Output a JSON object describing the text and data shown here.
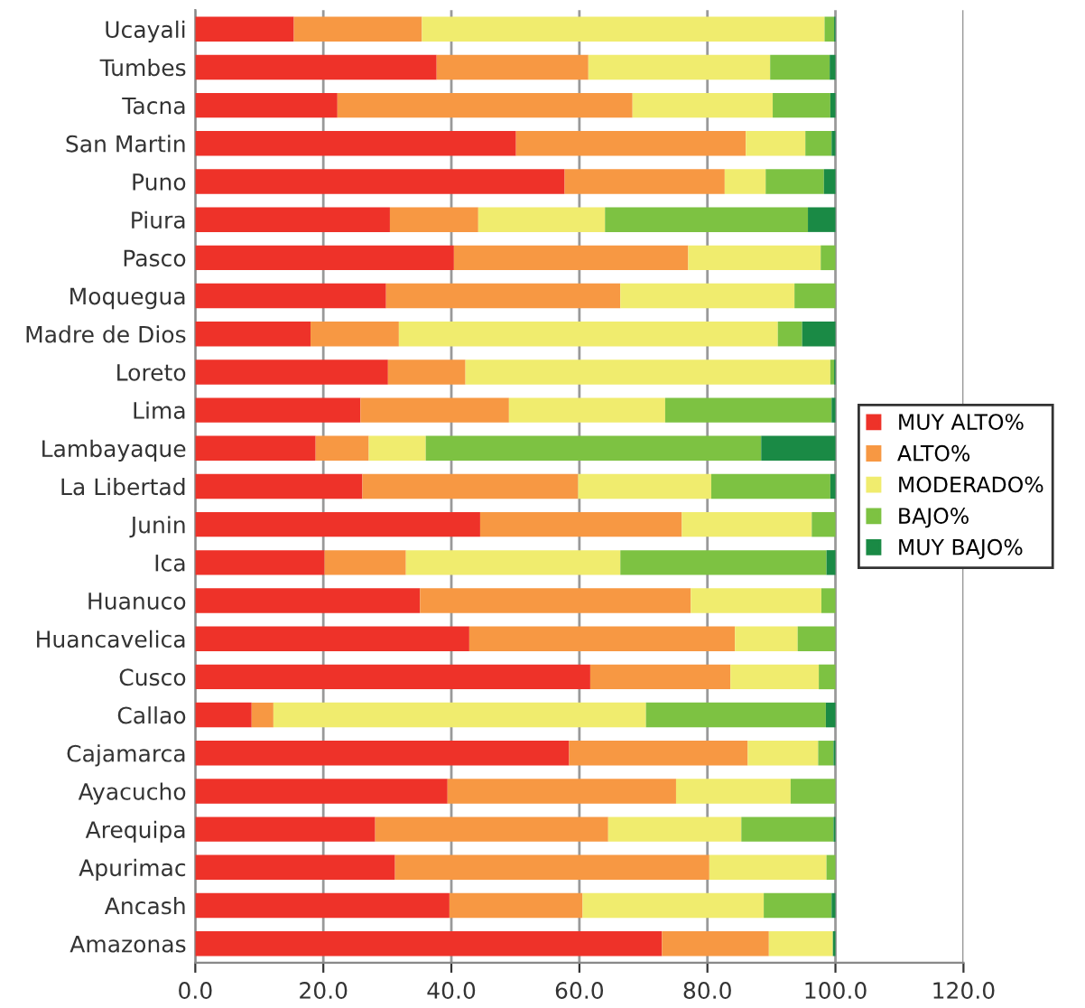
{
  "chart_data": {
    "type": "bar",
    "orientation": "horizontal",
    "stacked": true,
    "categories": [
      "Ucayali",
      "Tumbes",
      "Tacna",
      "San Martin",
      "Puno",
      "Piura",
      "Pasco",
      "Moquegua",
      "Madre de Dios",
      "Loreto",
      "Lima",
      "Lambayaque",
      "La Libertad",
      "Junin",
      "Ica",
      "Huanuco",
      "Huancavelica",
      "Cusco",
      "Callao",
      "Cajamarca",
      "Ayacucho",
      "Arequipa",
      "Apurimac",
      "Ancash",
      "Amazonas"
    ],
    "series": [
      {
        "name": "MUY ALTO%",
        "color": "#ee3229",
        "values": [
          15.4,
          37.7,
          22.2,
          50.1,
          57.7,
          30.4,
          40.4,
          29.8,
          18.0,
          30.1,
          25.8,
          18.8,
          26.1,
          44.5,
          20.2,
          35.1,
          42.8,
          61.7,
          8.8,
          58.4,
          39.4,
          28.1,
          31.2,
          39.7,
          72.9
        ]
      },
      {
        "name": "ALTO%",
        "color": "#f79843",
        "values": [
          20.0,
          23.7,
          46.1,
          35.9,
          25.0,
          13.8,
          36.6,
          36.6,
          13.8,
          12.1,
          23.2,
          8.3,
          33.7,
          31.5,
          12.7,
          42.3,
          41.5,
          21.9,
          3.4,
          27.9,
          35.7,
          36.4,
          49.1,
          20.8,
          16.7
        ]
      },
      {
        "name": "MODERADO%",
        "color": "#f0ec6e",
        "values": [
          62.9,
          28.4,
          21.9,
          9.3,
          6.4,
          19.8,
          20.7,
          27.2,
          59.2,
          57.0,
          24.4,
          8.9,
          20.8,
          20.3,
          33.5,
          20.4,
          9.8,
          13.8,
          58.2,
          11.0,
          17.9,
          20.8,
          18.3,
          28.3,
          10.0
        ]
      },
      {
        "name": "BAJO%",
        "color": "#7dc242",
        "values": [
          1.5,
          9.3,
          9.0,
          4.1,
          9.1,
          31.7,
          2.3,
          6.4,
          3.8,
          0.6,
          26.0,
          52.4,
          18.6,
          3.7,
          32.2,
          2.2,
          5.9,
          2.6,
          28.1,
          2.4,
          7.0,
          14.4,
          1.4,
          10.6,
          0.0
        ]
      },
      {
        "name": "MUY BAJO%",
        "color": "#1a8a45",
        "values": [
          0.2,
          0.9,
          0.8,
          0.6,
          1.8,
          4.3,
          0.0,
          0.0,
          5.2,
          0.2,
          0.6,
          11.6,
          0.8,
          0.0,
          1.4,
          0.0,
          0.0,
          0.0,
          1.5,
          0.3,
          0.0,
          0.3,
          0.0,
          0.6,
          0.4
        ]
      }
    ],
    "xlim": [
      0,
      120
    ],
    "xticks": [
      {
        "value": 0,
        "label": "0.0"
      },
      {
        "value": 20,
        "label": "20.0"
      },
      {
        "value": 40,
        "label": "40.0"
      },
      {
        "value": 60,
        "label": "60.0"
      },
      {
        "value": 80,
        "label": "80.0"
      },
      {
        "value": 100,
        "label": "100.0"
      },
      {
        "value": 120,
        "label": "120.0"
      }
    ],
    "grid": "x",
    "legend": "right"
  }
}
